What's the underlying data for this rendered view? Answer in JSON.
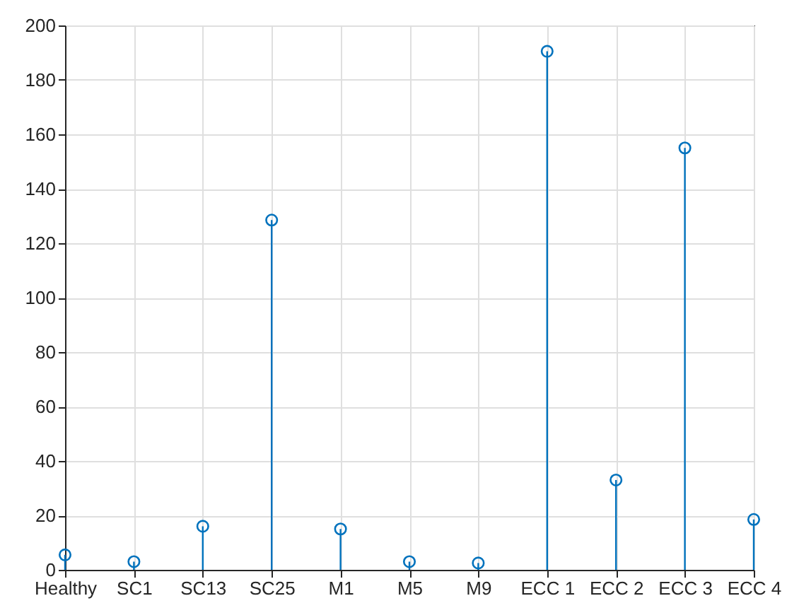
{
  "chart_data": {
    "type": "lollipop",
    "categories": [
      "Healthy",
      "SC1",
      "SC13",
      "SC25",
      "M1",
      "M5",
      "M9",
      "ECC 1",
      "ECC 2",
      "ECC 3",
      "ECC 4"
    ],
    "series": [
      {
        "color": "#0072bd",
        "values": [
          5.5,
          3,
          16,
          128.5,
          15,
          3,
          2.5,
          190.5,
          33,
          155,
          18.5
        ]
      }
    ],
    "ylim": [
      0,
      200
    ],
    "yticks": [
      0,
      20,
      40,
      60,
      80,
      100,
      120,
      140,
      160,
      180,
      200
    ],
    "grid": true,
    "marker": "circle"
  }
}
